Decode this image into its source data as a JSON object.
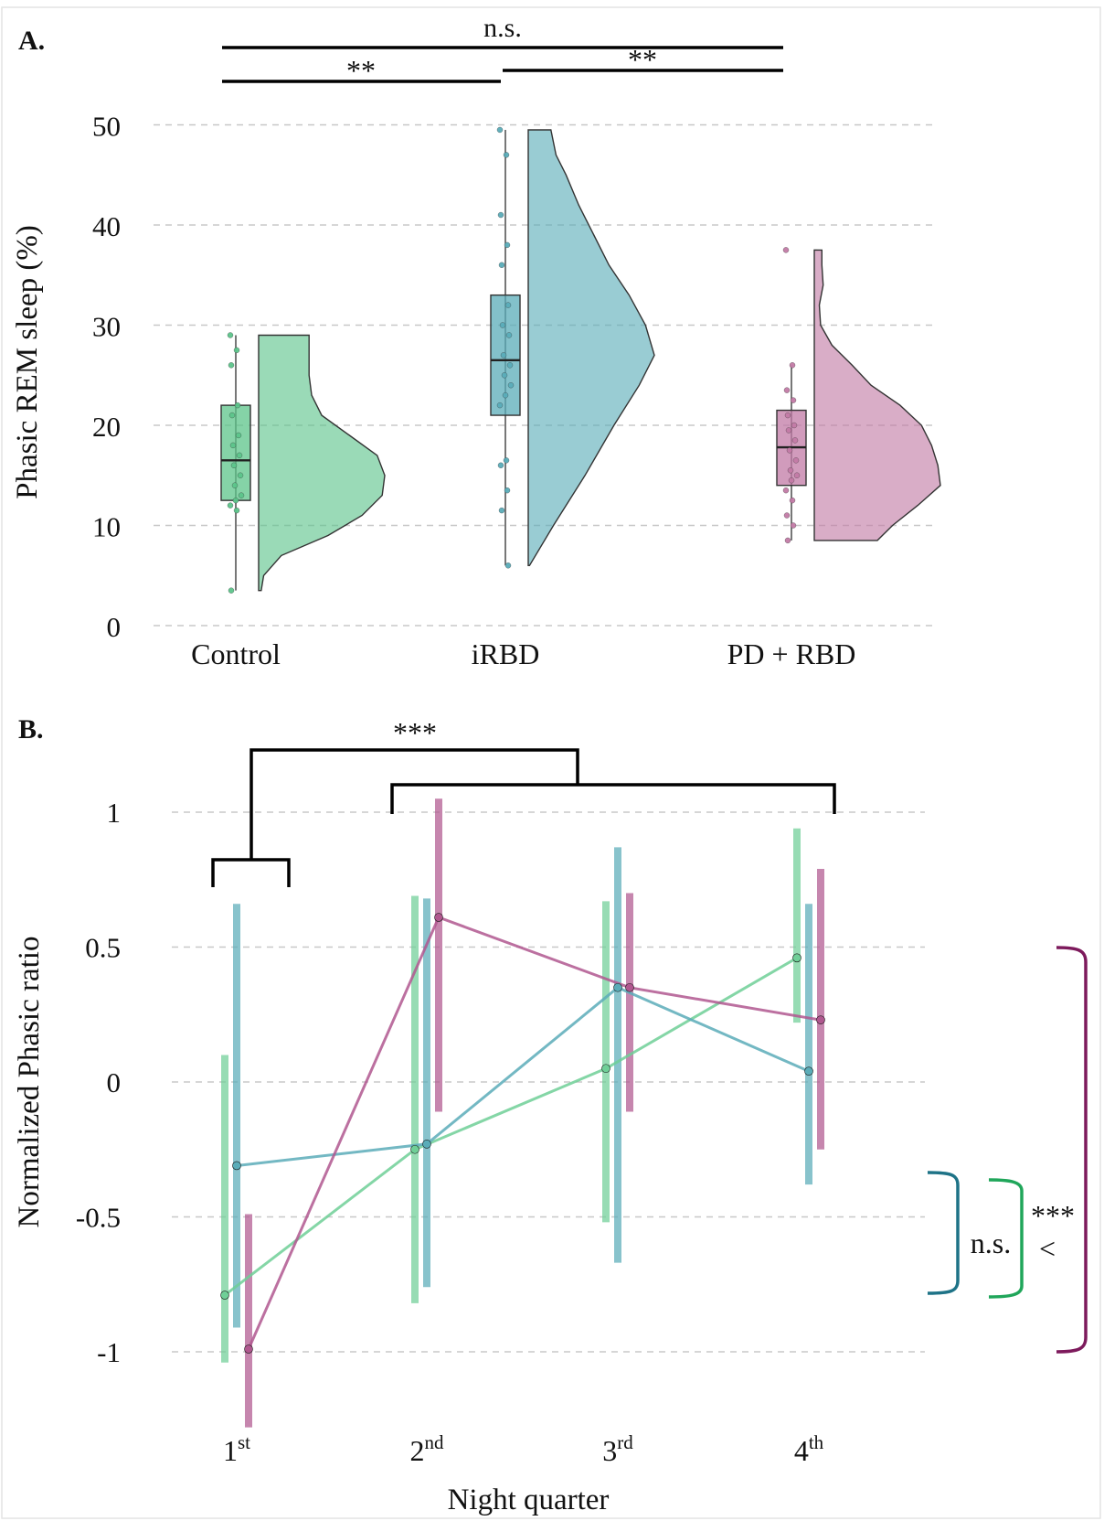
{
  "chart_data": [
    {
      "type": "raincloud",
      "panel_label": "A.",
      "ylabel": "Phasic REM sleep (%)",
      "ylim": [
        0,
        50
      ],
      "yticks": [
        "0",
        "10",
        "20",
        "30",
        "40",
        "50"
      ],
      "grid": true,
      "categories": [
        "Control",
        "iRBD",
        "PD + RBD"
      ],
      "groups": [
        {
          "name": "Control",
          "color": "#5cc48a",
          "box": {
            "min": 3.5,
            "q1": 12.5,
            "median": 16.5,
            "q3": 22,
            "max": 29
          },
          "points": [
            29,
            27.5,
            26,
            22,
            21,
            19,
            18,
            17,
            16,
            15,
            14,
            13,
            12.5,
            12,
            11.5,
            3.5
          ],
          "density": [
            [
              3.5,
              0.02
            ],
            [
              5,
              0.04
            ],
            [
              7,
              0.18
            ],
            [
              9,
              0.55
            ],
            [
              11,
              0.82
            ],
            [
              13,
              0.98
            ],
            [
              15,
              1.0
            ],
            [
              17,
              0.94
            ],
            [
              19,
              0.72
            ],
            [
              21,
              0.5
            ],
            [
              23,
              0.42
            ],
            [
              25,
              0.4
            ],
            [
              27,
              0.4
            ],
            [
              29,
              0.4
            ]
          ]
        },
        {
          "name": "iRBD",
          "color": "#5aacb8",
          "box": {
            "min": 6,
            "q1": 21,
            "median": 26.5,
            "q3": 33,
            "max": 49.5
          },
          "points": [
            49.5,
            47,
            41,
            38,
            36,
            32,
            30,
            29,
            27,
            26,
            25,
            24,
            23,
            22,
            16.5,
            16,
            13.5,
            11.5,
            6
          ],
          "density": [
            [
              6,
              0.01
            ],
            [
              10,
              0.2
            ],
            [
              15,
              0.45
            ],
            [
              20,
              0.68
            ],
            [
              24,
              0.88
            ],
            [
              27,
              1.0
            ],
            [
              30,
              0.93
            ],
            [
              33,
              0.8
            ],
            [
              36,
              0.64
            ],
            [
              39,
              0.52
            ],
            [
              42,
              0.4
            ],
            [
              45,
              0.3
            ],
            [
              47,
              0.22
            ],
            [
              49.5,
              0.18
            ]
          ]
        },
        {
          "name": "PD + RBD",
          "color": "#c27aa5",
          "box": {
            "min": 8.5,
            "q1": 14,
            "median": 17.8,
            "q3": 21.5,
            "max": 26
          },
          "points": [
            37.5,
            26,
            23.5,
            22.5,
            21,
            20,
            19.5,
            18.5,
            17.5,
            16.5,
            15.5,
            15,
            14.5,
            13.5,
            12.5,
            11,
            10,
            8.5
          ],
          "density": [
            [
              8.5,
              0.5
            ],
            [
              10,
              0.62
            ],
            [
              12,
              0.82
            ],
            [
              14,
              1.0
            ],
            [
              16,
              0.98
            ],
            [
              18,
              0.93
            ],
            [
              20,
              0.85
            ],
            [
              22,
              0.68
            ],
            [
              24,
              0.45
            ],
            [
              26,
              0.3
            ],
            [
              28,
              0.14
            ],
            [
              30,
              0.05
            ],
            [
              32,
              0.04
            ],
            [
              34,
              0.07
            ],
            [
              36,
              0.06
            ],
            [
              37.5,
              0.06
            ]
          ]
        }
      ],
      "annotations": [
        {
          "text": "n.s.",
          "from": "Control",
          "to": "PD + RBD"
        },
        {
          "text": "**",
          "from": "Control",
          "to": "iRBD"
        },
        {
          "text": "**",
          "from": "iRBD",
          "to": "PD + RBD"
        }
      ]
    },
    {
      "type": "line",
      "panel_label": "B.",
      "ylabel": "Normalized Phasic ratio",
      "xlabel": "Night quarter",
      "ylim": [
        -1.3,
        1.2
      ],
      "yticks": [
        "1",
        "0.5",
        "0",
        "-0.5",
        "-1"
      ],
      "grid": true,
      "categories": [
        {
          "base": "1",
          "sup": "st"
        },
        {
          "base": "2",
          "sup": "nd"
        },
        {
          "base": "3",
          "sup": "rd"
        },
        {
          "base": "4",
          "sup": "th"
        }
      ],
      "series": [
        {
          "color": "#6fcf97",
          "values": [
            -0.79,
            -0.25,
            0.05,
            0.46
          ],
          "lower": [
            -1.04,
            -0.82,
            -0.52,
            0.22
          ],
          "upper": [
            0.1,
            0.69,
            0.67,
            0.94
          ]
        },
        {
          "color": "#5aacb8",
          "values": [
            -0.31,
            -0.23,
            0.35,
            0.04
          ],
          "lower": [
            -0.91,
            -0.76,
            -0.67,
            -0.38
          ],
          "upper": [
            0.66,
            0.68,
            0.87,
            0.66
          ]
        },
        {
          "color": "#b0578f",
          "values": [
            -0.99,
            0.61,
            0.35,
            0.23
          ],
          "lower": [
            -1.28,
            -0.11,
            -0.11,
            -0.25
          ],
          "upper": [
            -0.49,
            1.05,
            0.7,
            0.79
          ]
        }
      ],
      "annotations": [
        {
          "text": "***",
          "between": "1st vs 2nd–4th"
        },
        {
          "text": "n.s."
        },
        {
          "text": "***"
        },
        {
          "text": "<"
        }
      ]
    }
  ]
}
